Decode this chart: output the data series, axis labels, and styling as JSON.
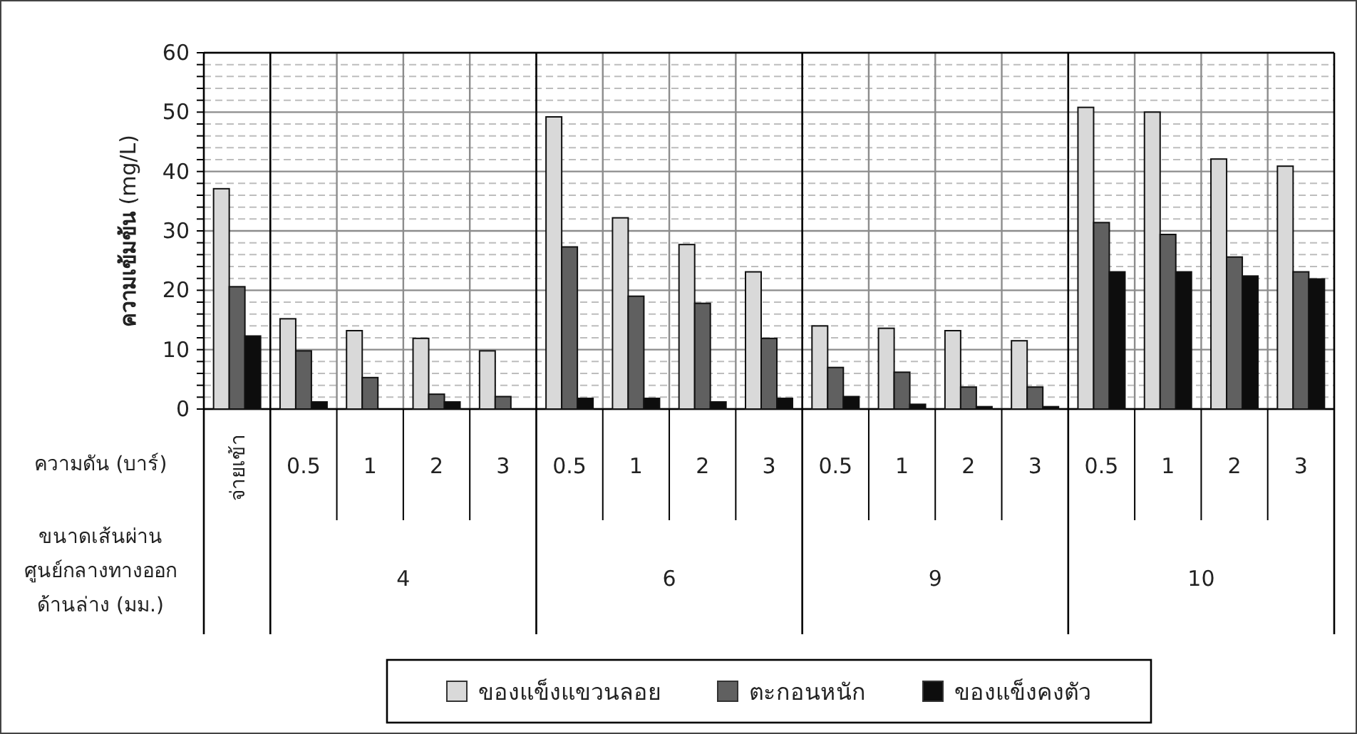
{
  "chart_data": {
    "type": "bar",
    "ylabel": "**ความเข้มข้น** (mg/L)",
    "categories": [
      "จ่ายเข้า",
      "0.5",
      "1",
      "2",
      "3",
      "0.5",
      "1",
      "2",
      "3",
      "0.5",
      "1",
      "2",
      "3",
      "0.5",
      "1",
      "2",
      "3"
    ],
    "series": [
      {
        "name": "ของแข็งแขวนลอย",
        "color": "#d9d9d9",
        "values": [
          37.1,
          15.2,
          13.2,
          11.9,
          9.8,
          49.2,
          32.2,
          27.7,
          23.1,
          14,
          13.6,
          13.2,
          11.5,
          50.8,
          50,
          42.1,
          40.9
        ]
      },
      {
        "name": "ตะกอนหนัก",
        "color": "#606060",
        "values": [
          20.6,
          9.8,
          5.3,
          2.5,
          2.1,
          27.3,
          19,
          17.8,
          11.9,
          7,
          6.2,
          3.7,
          3.7,
          31.4,
          29.4,
          25.6,
          23.1
        ]
      },
      {
        "name": "ของแข็งคงตัว",
        "color": "#0d0d0d",
        "values": [
          12.3,
          1.2,
          0,
          1.2,
          0,
          1.8,
          1.8,
          1.2,
          1.8,
          2.1,
          0.8,
          0.4,
          0.4,
          23.1,
          23.1,
          22.4,
          21.9
        ]
      }
    ],
    "annotations": [
      "ความดัน (บาร์)",
      "ขนาดเส้นผ่านศูนย์กลางทางออกด้านล่าง (มม.)",
      "4",
      "6",
      "9",
      "10"
    ],
    "ylim": [
      0,
      60
    ],
    "yticks": [
      0,
      {
        "value": 2,
        "label": null
      },
      {
        "value": 4,
        "label": null
      },
      {
        "value": 6,
        "label": null
      },
      {
        "value": 8,
        "label": null
      },
      10,
      {
        "value": 12,
        "label": null
      },
      {
        "value": 14,
        "label": null
      },
      {
        "value": 16,
        "label": null
      },
      {
        "value": 18,
        "label": null
      },
      20,
      {
        "value": 22,
        "label": null
      },
      {
        "value": 24,
        "label": null
      },
      {
        "value": 26,
        "label": null
      },
      {
        "value": 28,
        "label": null
      },
      30,
      {
        "value": 32,
        "label": null
      },
      {
        "value": 34,
        "label": null
      },
      {
        "value": 36,
        "label": null
      },
      {
        "value": 38,
        "label": null
      },
      40,
      {
        "value": 42,
        "label": null
      },
      {
        "value": 44,
        "label": null
      },
      {
        "value": 46,
        "label": null
      },
      {
        "value": 48,
        "label": null
      },
      50,
      {
        "value": 52,
        "label": null
      },
      {
        "value": 54,
        "label": null
      },
      {
        "value": 56,
        "label": null
      },
      {
        "value": 58,
        "label": null
      },
      60
    ],
    "grid": "y",
    "legend": "bottom"
  }
}
